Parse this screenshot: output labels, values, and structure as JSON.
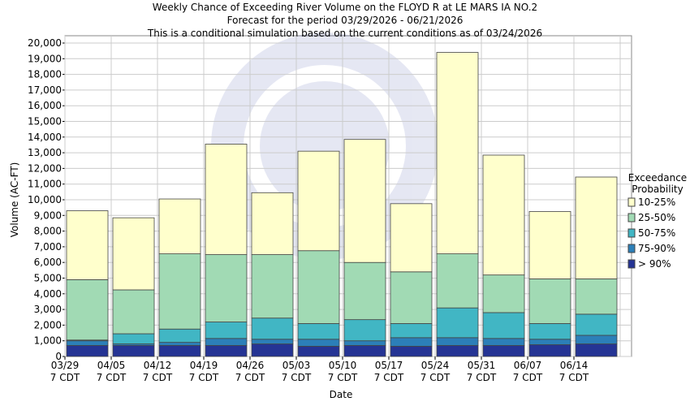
{
  "chart_data": {
    "type": "bar",
    "stacked": true,
    "title": [
      "Weekly Chance of Exceeding River Volume on the FLOYD R at LE MARS IA NO.2",
      "Forecast for the period 03/29/2026 - 06/21/2026",
      "This is a conditional simulation based on the current conditions as of 03/24/2026"
    ],
    "x_label": "Date",
    "y_label": "Volume (AC-FT)",
    "legend_title": [
      "Exceedance",
      "Probability"
    ],
    "categories": [
      [
        "03/29",
        "7 CDT"
      ],
      [
        "04/05",
        "7 CDT"
      ],
      [
        "04/12",
        "7 CDT"
      ],
      [
        "04/19",
        "7 CDT"
      ],
      [
        "04/26",
        "7 CDT"
      ],
      [
        "05/03",
        "7 CDT"
      ],
      [
        "05/10",
        "7 CDT"
      ],
      [
        "05/17",
        "7 CDT"
      ],
      [
        "05/24",
        "7 CDT"
      ],
      [
        "05/31",
        "7 CDT"
      ],
      [
        "06/07",
        "7 CDT"
      ],
      [
        "06/14",
        "7 CDT"
      ]
    ],
    "series": [
      {
        "name": "> 90%",
        "color": "#253494",
        "values": [
          700,
          700,
          700,
          700,
          800,
          650,
          700,
          650,
          700,
          700,
          750,
          800
        ]
      },
      {
        "name": "75-90%",
        "color": "#2c7fb8",
        "values": [
          300,
          100,
          200,
          450,
          300,
          450,
          300,
          550,
          500,
          450,
          350,
          550
        ]
      },
      {
        "name": "50-75%",
        "color": "#41b6c4",
        "values": [
          50,
          650,
          850,
          1050,
          1350,
          1000,
          1350,
          900,
          1900,
          1650,
          1000,
          1350
        ]
      },
      {
        "name": "25-50%",
        "color": "#a1dab4",
        "values": [
          3850,
          2800,
          4800,
          4300,
          4050,
          4650,
          3650,
          3300,
          3450,
          2400,
          2850,
          2250
        ]
      },
      {
        "name": "10-25%",
        "color": "#ffffcc",
        "values": [
          4400,
          4600,
          3500,
          7050,
          3950,
          6350,
          7850,
          4350,
          12850,
          7650,
          4300,
          6500
        ]
      }
    ],
    "ylim": [
      0,
      20000
    ],
    "yticks": [
      0,
      {
        "value": 1000,
        "label": "1,000"
      },
      {
        "value": 2000,
        "label": "2,000"
      },
      {
        "value": 3000,
        "label": "3,000"
      },
      {
        "value": 4000,
        "label": "4,000"
      },
      {
        "value": 5000,
        "label": "5,000"
      },
      {
        "value": 6000,
        "label": "6,000"
      },
      {
        "value": 7000,
        "label": "7,000"
      },
      {
        "value": 8000,
        "label": "8,000"
      },
      {
        "value": 9000,
        "label": "9,000"
      },
      {
        "value": 10000,
        "label": "10,000"
      },
      {
        "value": 11000,
        "label": "11,000"
      },
      {
        "value": 12000,
        "label": "12,000"
      },
      {
        "value": 13000,
        "label": "13,000"
      },
      {
        "value": 14000,
        "label": "14,000"
      },
      {
        "value": 15000,
        "label": "15,000"
      },
      {
        "value": 16000,
        "label": "16,000"
      },
      {
        "value": 17000,
        "label": "17,000"
      },
      {
        "value": 18000,
        "label": "18,000"
      },
      {
        "value": 19000,
        "label": "19,000"
      },
      {
        "value": 20000,
        "label": "20,000"
      }
    ],
    "grid": true,
    "legend": "right"
  }
}
